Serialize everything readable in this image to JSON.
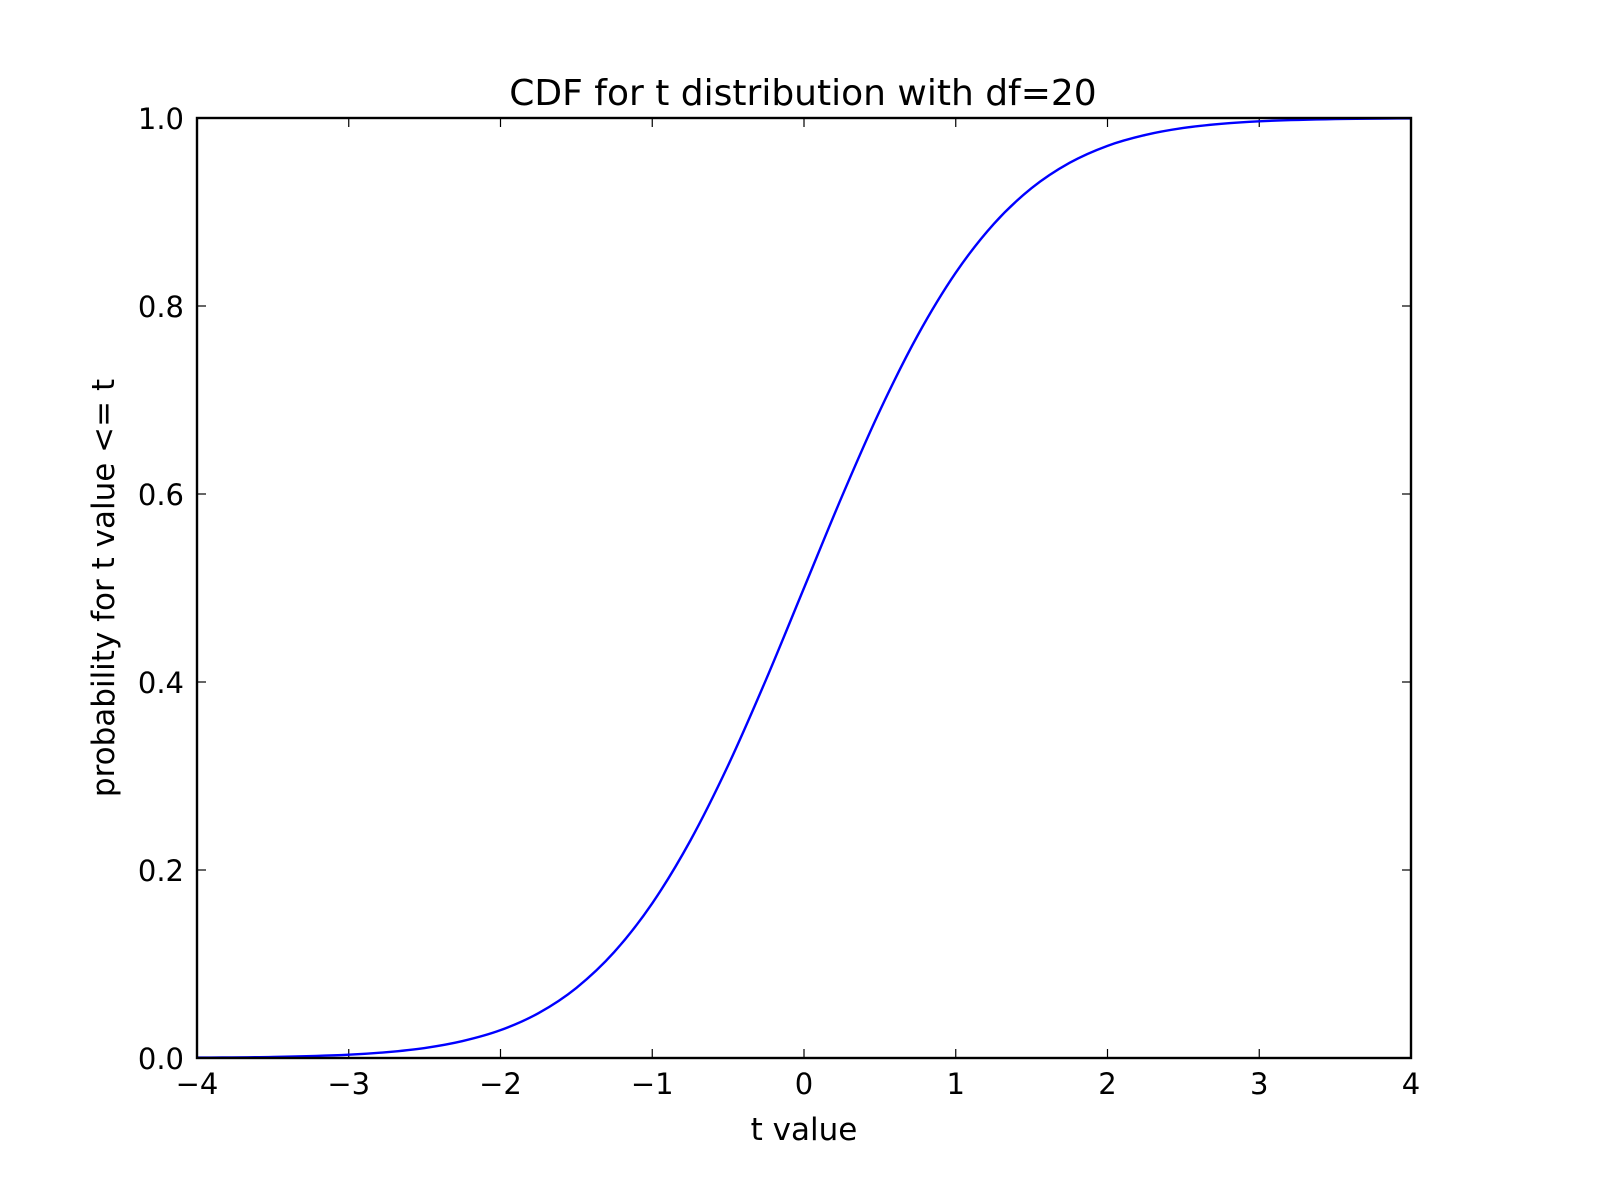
{
  "chart_data": {
    "type": "line",
    "title": "CDF for t distribution with df=20",
    "xlabel": "t value",
    "ylabel": "probability for t value <= t",
    "xlim": [
      -4,
      4
    ],
    "ylim": [
      0.0,
      1.0
    ],
    "x_ticks": [
      -4,
      -3,
      -2,
      -1,
      0,
      1,
      2,
      3,
      4
    ],
    "x_tick_labels": [
      "−4",
      "−3",
      "−2",
      "−1",
      "0",
      "1",
      "2",
      "3",
      "4"
    ],
    "y_ticks": [
      0.0,
      0.2,
      0.4,
      0.6,
      0.8,
      1.0
    ],
    "y_tick_labels": [
      "0.0",
      "0.2",
      "0.4",
      "0.6",
      "0.8",
      "1.0"
    ],
    "grid": false,
    "series": [
      {
        "color": "#0000ff",
        "x": [
          -4.0,
          -3.5,
          -3.0,
          -2.75,
          -2.5,
          -2.25,
          -2.0,
          -1.75,
          -1.5,
          -1.25,
          -1.0,
          -0.75,
          -0.5,
          -0.25,
          0.0,
          0.25,
          0.5,
          0.75,
          1.0,
          1.25,
          1.5,
          1.75,
          2.0,
          2.25,
          2.5,
          2.75,
          3.0,
          3.5,
          4.0
        ],
        "y": [
          0.0004,
          0.0011,
          0.0035,
          0.0062,
          0.0106,
          0.018,
          0.0296,
          0.0477,
          0.0746,
          0.1128,
          0.1646,
          0.231,
          0.3113,
          0.4026,
          0.5,
          0.5974,
          0.6887,
          0.769,
          0.8354,
          0.8872,
          0.9254,
          0.9523,
          0.9704,
          0.982,
          0.9894,
          0.9938,
          0.9965,
          0.9989,
          0.9996
        ]
      }
    ]
  }
}
